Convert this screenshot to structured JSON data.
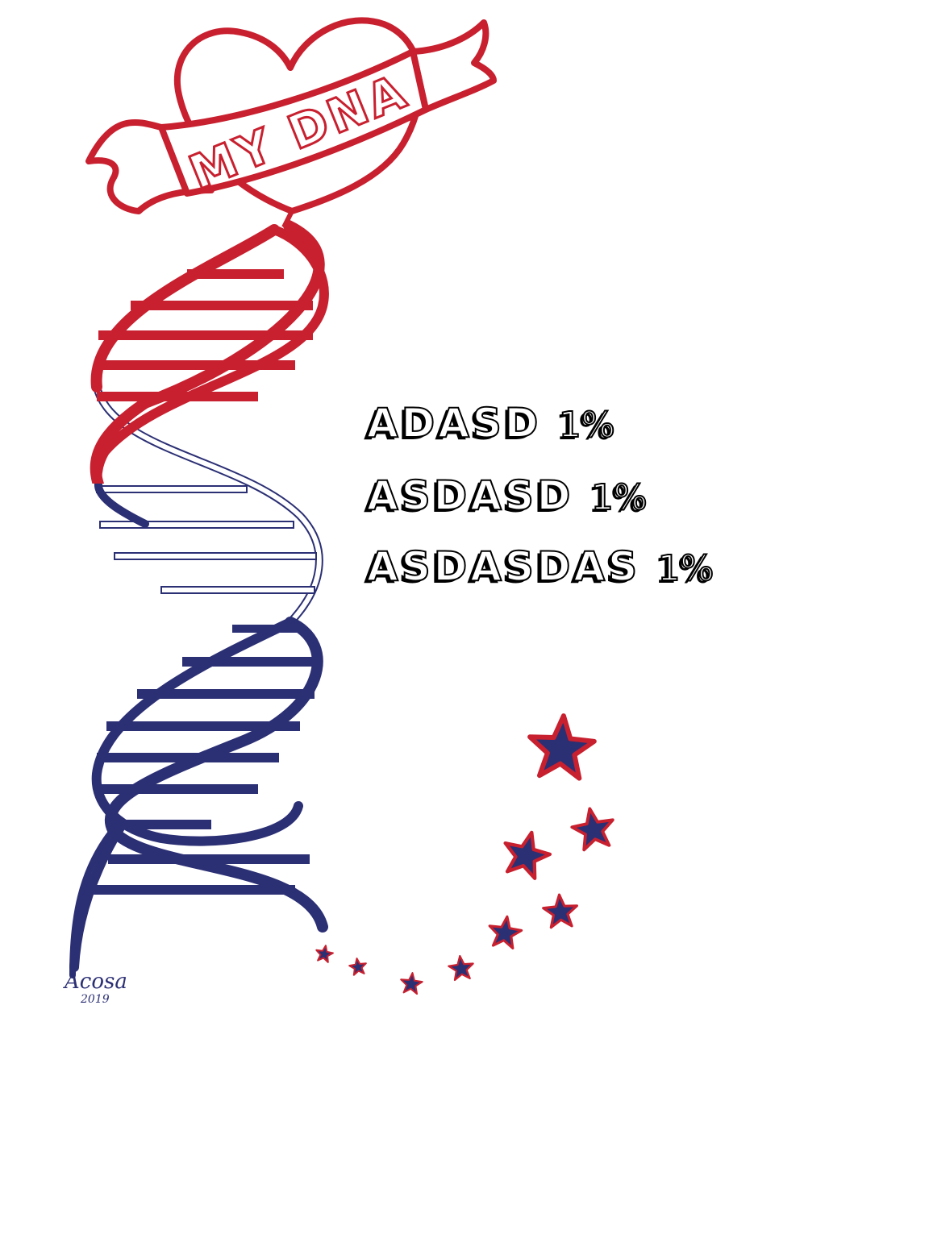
{
  "banner": {
    "text": "MY DNA"
  },
  "lines": [
    {
      "label": "ADASD",
      "value": "1%"
    },
    {
      "label": "ASDASD",
      "value": "1%"
    },
    {
      "label": "ASDASDAS",
      "value": "1%"
    }
  ],
  "signature": {
    "name": "Acosa",
    "year": "2019"
  },
  "colors": {
    "red": "#c8202f",
    "blue": "#2b2f74",
    "text": "#000000",
    "background": "#ffffff"
  }
}
